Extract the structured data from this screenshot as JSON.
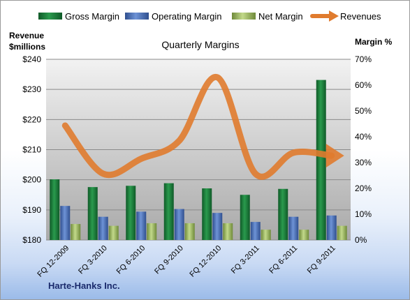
{
  "chart_data": {
    "type": "bar",
    "title": "Quarterly Margins",
    "company": "Harte-Hanks Inc.",
    "left_axis_label": [
      "Revenue",
      "$millions"
    ],
    "right_axis_label": "Margin %",
    "left_ylim": [
      180,
      240
    ],
    "left_ticks": [
      "$180",
      "$190",
      "$200",
      "$210",
      "$220",
      "$230",
      "$240"
    ],
    "right_ylim": [
      0,
      70
    ],
    "right_ticks": [
      "0%",
      "10%",
      "20%",
      "30%",
      "40%",
      "50%",
      "60%",
      "70%"
    ],
    "categories": [
      "FQ 12-2009",
      "FQ 3-2010",
      "FQ 6-2010",
      "FQ 9-2010",
      "FQ 12-2010",
      "FQ 3-2011",
      "FQ 6-2011",
      "FQ 9-2011"
    ],
    "grid": true,
    "legend_position": "top",
    "series": [
      {
        "name": "Gross Margin",
        "type": "bar",
        "axis": "right",
        "color": "#1f7a3a",
        "values": [
          23.5,
          20.5,
          21.0,
          22.0,
          20.0,
          17.5,
          19.8,
          62.0
        ]
      },
      {
        "name": "Operating Margin",
        "type": "bar",
        "axis": "right",
        "color": "#4a6fb5",
        "values": [
          13.2,
          9.0,
          11.0,
          12.0,
          10.5,
          7.0,
          9.0,
          9.5
        ]
      },
      {
        "name": "Net Margin",
        "type": "bar",
        "axis": "right",
        "color": "#9bbb59",
        "values": [
          6.2,
          5.5,
          6.5,
          6.5,
          6.5,
          4.0,
          4.0,
          5.5
        ]
      },
      {
        "name": "Revenues",
        "type": "line",
        "axis": "left",
        "color": "#e07b2e",
        "values": [
          218,
          202,
          207,
          213,
          234,
          202,
          209,
          208
        ]
      }
    ]
  }
}
